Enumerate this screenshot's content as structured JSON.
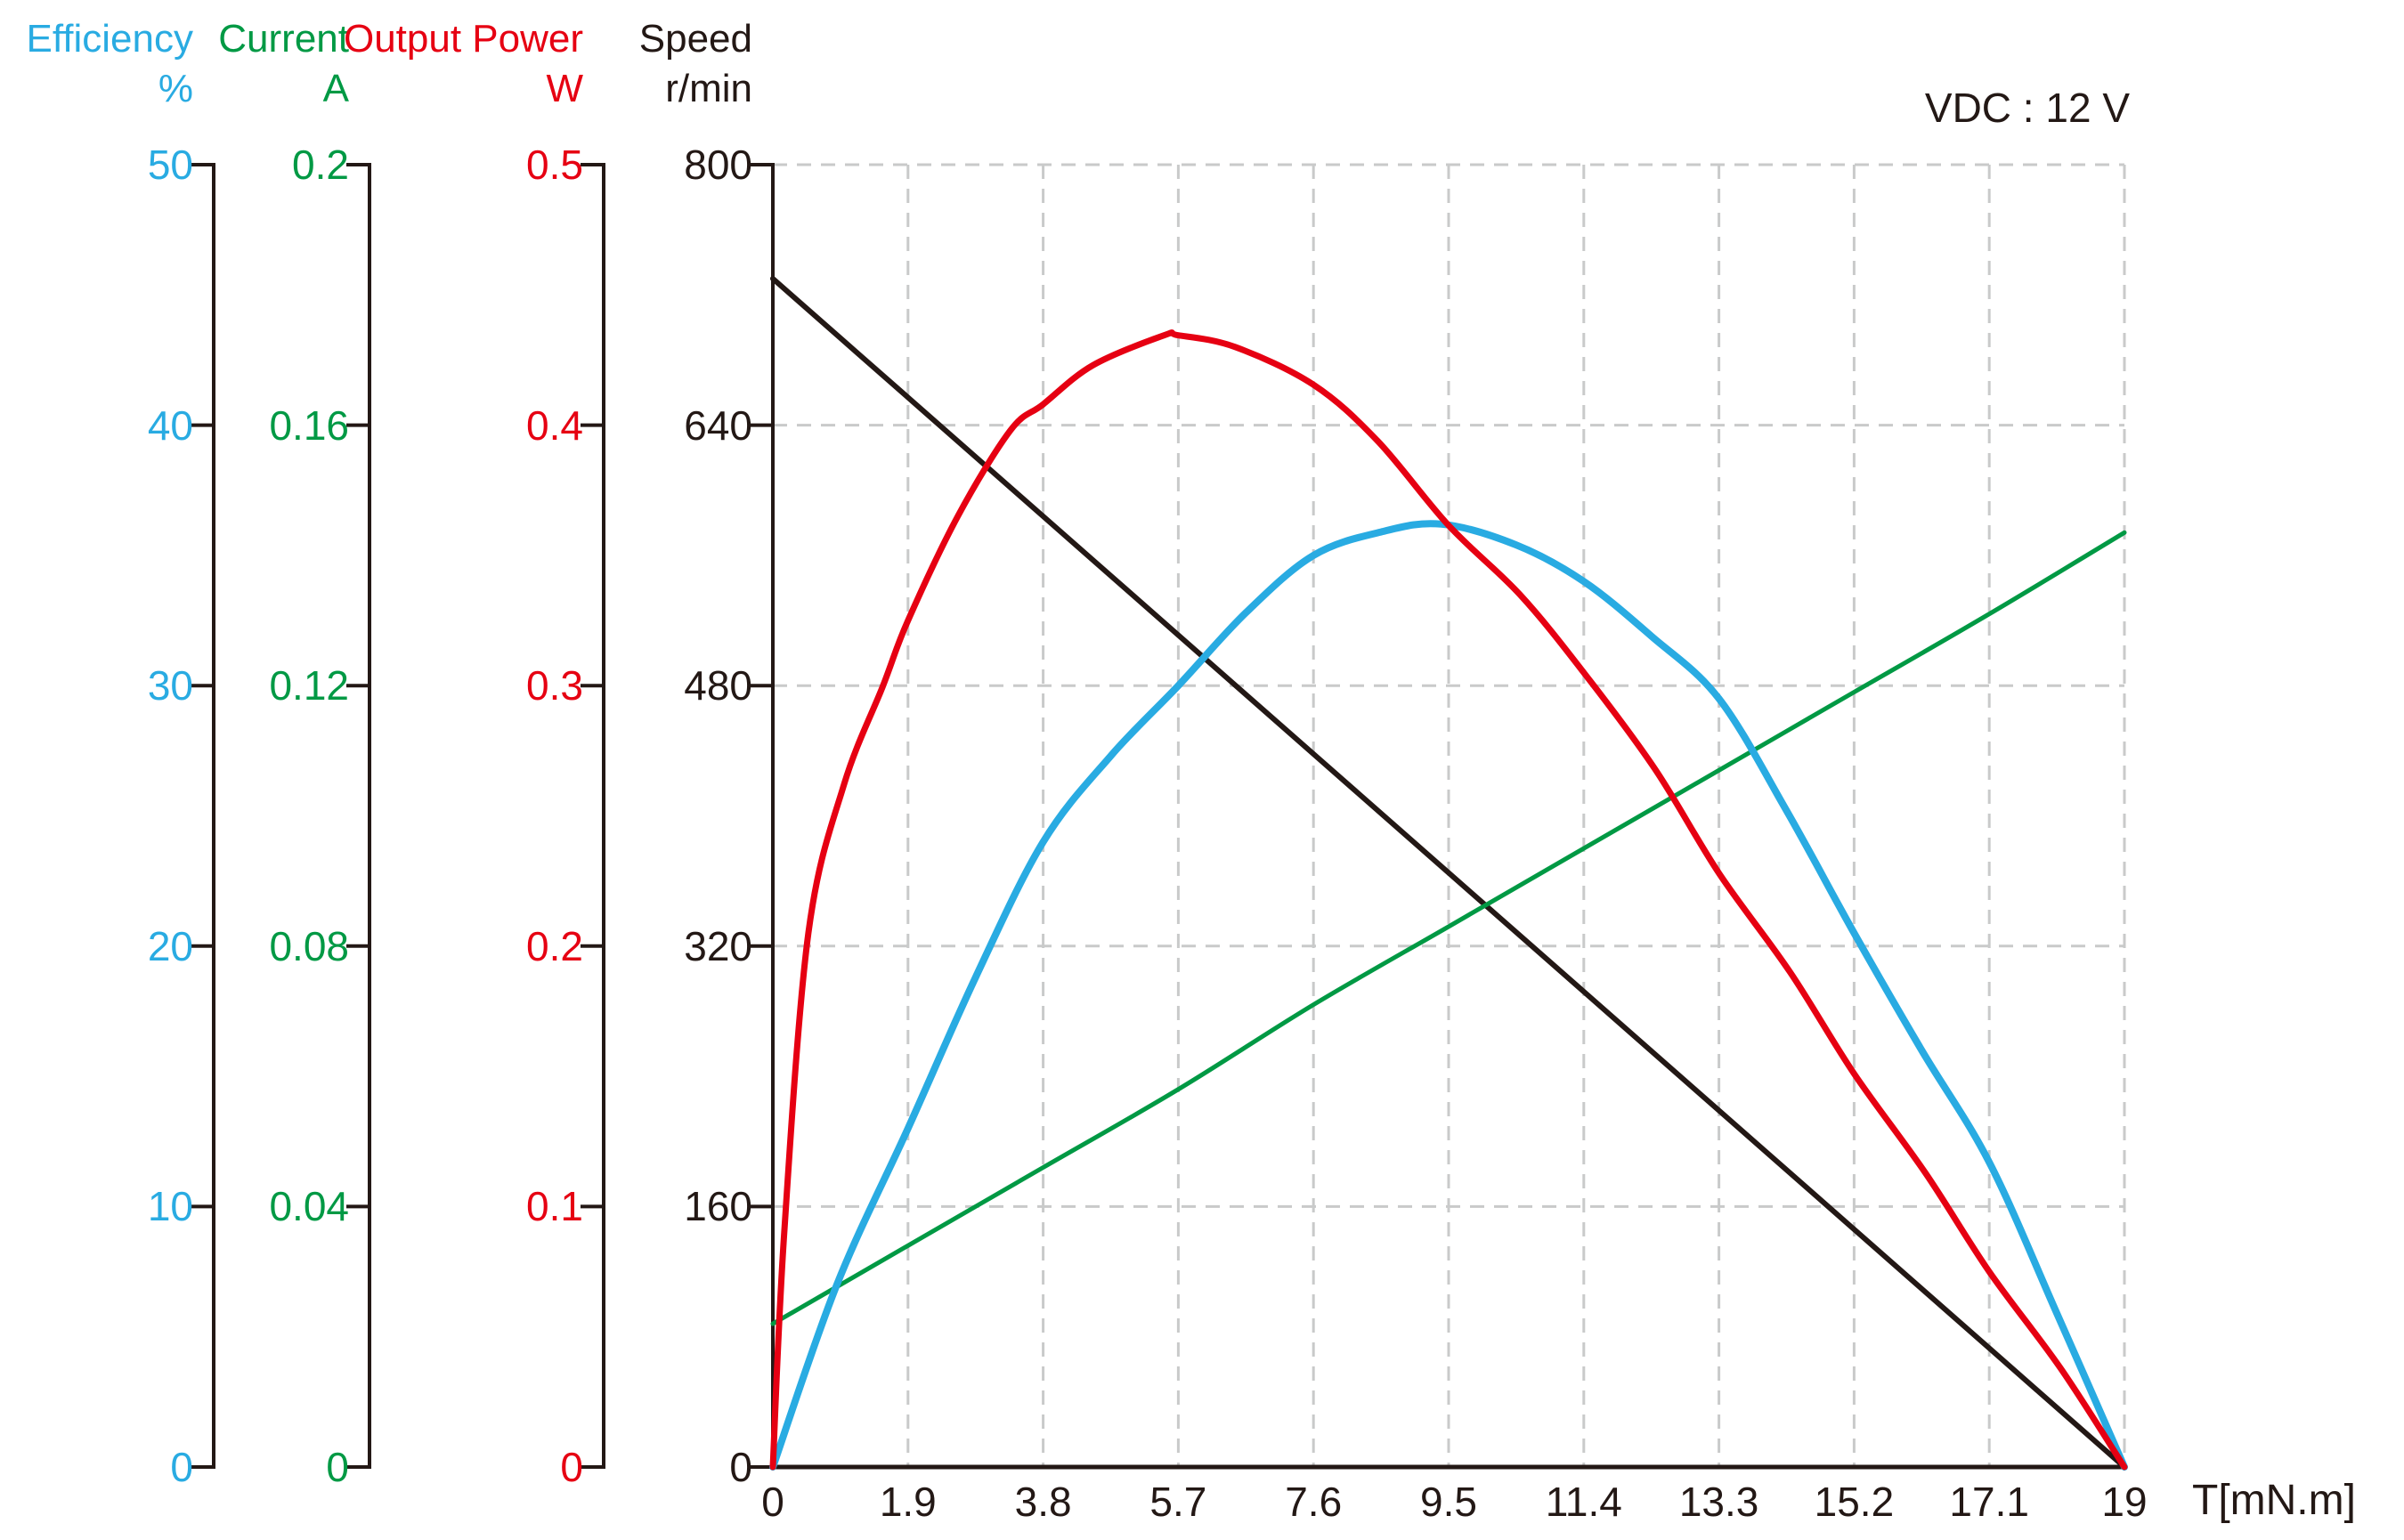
{
  "annotation": "VDC : 12 V",
  "x_axis": {
    "title": "T[mN.m]",
    "min": 0,
    "max": 19,
    "ticks": [
      "0",
      "1.9",
      "3.8",
      "5.7",
      "7.6",
      "9.5",
      "11.4",
      "13.3",
      "15.2",
      "17.1",
      "19"
    ]
  },
  "y_axes": [
    {
      "id": "efficiency",
      "label": "Efficiency",
      "unit": "%",
      "color": "#29ABE2",
      "max": 50,
      "min": 0,
      "ticks": [
        "50",
        "40",
        "30",
        "20",
        "10",
        "0"
      ]
    },
    {
      "id": "current",
      "label": "Current",
      "unit": "A",
      "color": "#009944",
      "max": 0.2,
      "min": 0,
      "ticks": [
        "0.2",
        "0.16",
        "0.12",
        "0.08",
        "0.04",
        "0"
      ]
    },
    {
      "id": "output_power",
      "label": "Output Power",
      "unit": "W",
      "color": "#E60012",
      "max": 0.5,
      "min": 0,
      "ticks": [
        "0.5",
        "0.4",
        "0.3",
        "0.2",
        "0.1",
        "0"
      ]
    },
    {
      "id": "speed",
      "label": "Speed",
      "unit": "r/min",
      "color": "#231815",
      "max": 800,
      "min": 0,
      "ticks": [
        "800",
        "640",
        "480",
        "320",
        "160",
        "0"
      ]
    }
  ],
  "chart_data": {
    "type": "line",
    "xlabel": "T[mN.m]",
    "x_range": [
      0,
      19
    ],
    "grid": true,
    "legend_position": "per-axis column headers, top left",
    "annotation": "VDC : 12 V",
    "series": [
      {
        "name": "Speed",
        "unit": "r/min",
        "axis": "speed",
        "shape": "linear",
        "x": [
          0,
          1.9,
          3.8,
          5.7,
          7.6,
          9.5,
          11.4,
          13.3,
          15.2,
          17.1,
          19
        ],
        "values": [
          730,
          657,
          584,
          511,
          438,
          365,
          292,
          219,
          146,
          73,
          0
        ]
      },
      {
        "name": "Current",
        "unit": "A",
        "axis": "current",
        "shape": "linear",
        "x": [
          0,
          1.9,
          3.8,
          5.7,
          7.6,
          9.5,
          11.4,
          13.3,
          15.2,
          17.1,
          19
        ],
        "values": [
          0.022,
          0.034,
          0.046,
          0.058,
          0.071,
          0.083,
          0.095,
          0.107,
          0.119,
          0.131,
          0.1435
        ]
      },
      {
        "name": "Efficiency",
        "unit": "%",
        "axis": "efficiency",
        "shape": "curve",
        "peak_x": 9.4,
        "peak_value": 36.2,
        "x": [
          0,
          0.9,
          1.9,
          2.85,
          3.8,
          4.75,
          5.7,
          6.65,
          7.6,
          8.55,
          9.4,
          10.45,
          11.4,
          12.35,
          13.3,
          14.25,
          15.2,
          16.15,
          17.1,
          18.05,
          19
        ],
        "values": [
          0,
          7,
          13,
          18.8,
          24,
          27.3,
          30,
          32.8,
          35,
          35.9,
          36.2,
          35.4,
          34,
          31.9,
          29.5,
          25.2,
          20.5,
          16.0,
          11.7,
          5.9,
          0
        ]
      },
      {
        "name": "Output Power",
        "unit": "W",
        "axis": "output_power",
        "shape": "curve",
        "peak_x": 5.6,
        "peak_value": 0.434,
        "x": [
          0,
          0.16,
          0.5,
          1.0,
          1.55,
          1.9,
          2.6,
          3.34,
          3.8,
          4.5,
          5.5,
          5.7,
          6.5,
          7.6,
          8.5,
          9.5,
          10.5,
          11.4,
          12.4,
          13.3,
          14.3,
          15.2,
          16.2,
          17.1,
          18.1,
          19
        ],
        "values": [
          0,
          0.09,
          0.205,
          0.262,
          0.3,
          0.325,
          0.365,
          0.398,
          0.408,
          0.423,
          0.4345,
          0.4345,
          0.43,
          0.4155,
          0.394,
          0.3615,
          0.335,
          0.305,
          0.268,
          0.228,
          0.19,
          0.151,
          0.113,
          0.075,
          0.038,
          0
        ]
      }
    ]
  }
}
